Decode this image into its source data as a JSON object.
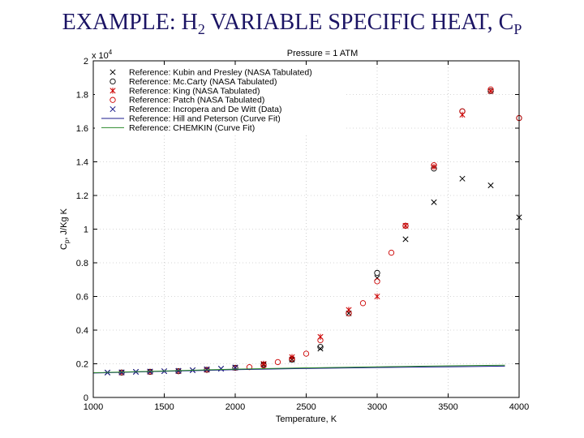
{
  "slide": {
    "title_main": "EXAMPLE: H",
    "title_sub": "2",
    "title_rest": " VARIABLE SPECIFIC HEAT, C",
    "title_sub2": "P"
  },
  "chart_data": {
    "type": "scatter",
    "title": "Pressure = 1 ATM",
    "xlabel": "Temperature, K",
    "ylabel_main": "C",
    "ylabel_sub": "p",
    "ylabel_rest": ", J/Kg K",
    "y_multiplier": "x 10",
    "y_multiplier_exp": "4",
    "xlim": [
      1000,
      4000
    ],
    "ylim": [
      0,
      2
    ],
    "x_ticks": [
      1000,
      1500,
      2000,
      2500,
      3000,
      3500,
      4000
    ],
    "y_ticks": [
      0,
      0.2,
      0.4,
      0.6,
      0.8,
      1,
      1.2,
      1.4,
      1.6,
      1.8,
      2
    ],
    "grid": true,
    "legend_position": "top-left",
    "series": [
      {
        "name": "Reference: Kubin and Presley (NASA Tabulated)",
        "marker": "x",
        "color": "#000000",
        "points": [
          [
            1100,
            0.148
          ],
          [
            1200,
            0.149
          ],
          [
            1300,
            0.152
          ],
          [
            1400,
            0.154
          ],
          [
            1500,
            0.156
          ],
          [
            1600,
            0.158
          ],
          [
            1700,
            0.162
          ],
          [
            1800,
            0.167
          ],
          [
            1900,
            0.171
          ],
          [
            2000,
            0.178
          ],
          [
            2200,
            0.195
          ],
          [
            2400,
            0.225
          ],
          [
            2600,
            0.29
          ],
          [
            2800,
            0.5
          ],
          [
            3000,
            0.71
          ],
          [
            3200,
            0.94
          ],
          [
            3400,
            1.16
          ],
          [
            3600,
            1.3
          ],
          [
            3800,
            1.26
          ],
          [
            4000,
            1.07
          ]
        ]
      },
      {
        "name": "Reference: Mc.Carty (NASA Tabulated)",
        "marker": "o",
        "color": "#000000",
        "points": [
          [
            1200,
            0.148
          ],
          [
            1400,
            0.152
          ],
          [
            1600,
            0.156
          ],
          [
            1800,
            0.164
          ],
          [
            2000,
            0.176
          ],
          [
            2200,
            0.195
          ],
          [
            2400,
            0.225
          ],
          [
            2600,
            0.3
          ],
          [
            2800,
            0.5
          ],
          [
            3000,
            0.74
          ],
          [
            3200,
            1.02
          ],
          [
            3400,
            1.36
          ],
          [
            3600,
            1.7
          ],
          [
            3800,
            1.82
          ],
          [
            4000,
            1.66
          ]
        ]
      },
      {
        "name": "Reference: King (NASA Tabulated)",
        "marker": "star",
        "color": "#cc0000",
        "points": [
          [
            1200,
            0.148
          ],
          [
            1400,
            0.152
          ],
          [
            1600,
            0.156
          ],
          [
            1800,
            0.164
          ],
          [
            2000,
            0.176
          ],
          [
            2200,
            0.2
          ],
          [
            2400,
            0.24
          ],
          [
            2600,
            0.36
          ],
          [
            2800,
            0.52
          ],
          [
            3000,
            0.6
          ],
          [
            3200,
            1.02
          ],
          [
            3400,
            1.37
          ],
          [
            3600,
            1.68
          ],
          [
            3800,
            1.82
          ]
        ]
      },
      {
        "name": "Reference: Patch (NASA Tabulated)",
        "marker": "o",
        "color": "#cc0000",
        "points": [
          [
            2100,
            0.18
          ],
          [
            2200,
            0.19
          ],
          [
            2300,
            0.21
          ],
          [
            2400,
            0.23
          ],
          [
            2500,
            0.26
          ],
          [
            2600,
            0.34
          ],
          [
            2800,
            0.5
          ],
          [
            2900,
            0.56
          ],
          [
            3000,
            0.69
          ],
          [
            3100,
            0.86
          ],
          [
            3200,
            1.02
          ],
          [
            3400,
            1.38
          ],
          [
            3600,
            1.7
          ],
          [
            3800,
            1.83
          ],
          [
            4000,
            1.66
          ]
        ]
      },
      {
        "name": "Reference: Incropera and De Witt (Data)",
        "marker": "x",
        "color": "#1b1b8c",
        "points": [
          [
            1100,
            0.148
          ],
          [
            1200,
            0.149
          ],
          [
            1300,
            0.152
          ],
          [
            1400,
            0.154
          ],
          [
            1500,
            0.156
          ],
          [
            1600,
            0.158
          ],
          [
            1700,
            0.162
          ],
          [
            1800,
            0.167
          ],
          [
            1900,
            0.171
          ],
          [
            2000,
            0.178
          ]
        ]
      },
      {
        "name": "Reference: Hill and Peterson (Curve Fit)",
        "marker": "line",
        "color": "#1b1b8c",
        "points": [
          [
            1000,
            0.145
          ],
          [
            1500,
            0.155
          ],
          [
            2000,
            0.165
          ],
          [
            2500,
            0.172
          ],
          [
            3000,
            0.178
          ],
          [
            3500,
            0.182
          ],
          [
            3900,
            0.186
          ]
        ]
      },
      {
        "name": "Reference: CHEMKIN (Curve Fit)",
        "marker": "line",
        "color": "#2a8a2a",
        "points": [
          [
            1000,
            0.147
          ],
          [
            1500,
            0.157
          ],
          [
            2000,
            0.168
          ],
          [
            2500,
            0.176
          ],
          [
            3000,
            0.182
          ],
          [
            3500,
            0.188
          ],
          [
            3900,
            0.192
          ]
        ]
      }
    ]
  }
}
